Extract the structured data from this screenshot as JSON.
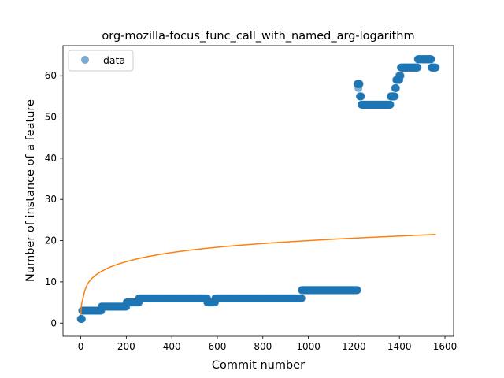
{
  "chart_data": {
    "type": "scatter",
    "title": "org-mozilla-focus_func_call_with_named_arg-logarithm",
    "xlabel": "Commit number",
    "ylabel": "Number of instance of a feature",
    "xlim": [
      -78,
      1638
    ],
    "ylim": [
      -3.2,
      67.3
    ],
    "xticks": [
      0,
      200,
      400,
      600,
      800,
      1000,
      1200,
      1400,
      1600
    ],
    "yticks": [
      0,
      10,
      20,
      30,
      40,
      50,
      60
    ],
    "grid": false,
    "legend": {
      "position": "top-left",
      "entries": [
        "data"
      ]
    },
    "colors": {
      "data": "#1f77b4",
      "fit": "#ff7f0e"
    },
    "series": [
      {
        "name": "data",
        "kind": "scatter",
        "segments": [
          {
            "x": [
              0,
              5
            ],
            "y": 1
          },
          {
            "x": [
              6,
              90
            ],
            "y": 3
          },
          {
            "x": [
              91,
              200
            ],
            "y": 4
          },
          {
            "x": [
              201,
              255
            ],
            "y": 5
          },
          {
            "x": [
              256,
              555
            ],
            "y": 6
          },
          {
            "x": [
              556,
              590
            ],
            "y": 5
          },
          {
            "x": [
              591,
              970
            ],
            "y": 6
          },
          {
            "x": [
              971,
              1215
            ],
            "y": 8
          },
          {
            "x": [
              1216,
              1225
            ],
            "y": 58
          },
          {
            "x": [
              1226,
              1232
            ],
            "y": 55
          },
          {
            "x": [
              1233,
              1360
            ],
            "y": 53
          },
          {
            "x": [
              1361,
              1380
            ],
            "y": 55
          },
          {
            "x": [
              1381,
              1385
            ],
            "y": 57
          },
          {
            "x": [
              1386,
              1400
            ],
            "y": 59
          },
          {
            "x": [
              1401,
              1405
            ],
            "y": 60
          },
          {
            "x": [
              1406,
              1480
            ],
            "y": 62
          },
          {
            "x": [
              1481,
              1540
            ],
            "y": 64
          },
          {
            "x": [
              1541,
              1560
            ],
            "y": 62
          }
        ],
        "extra_points": [
          [
            1220,
            57
          ],
          [
            1215,
            58
          ],
          [
            1398,
            60
          ]
        ]
      },
      {
        "kind": "line",
        "x_range": [
          0,
          1560
        ],
        "y_at": [
          [
            0,
            2.0
          ],
          [
            10,
            6.0
          ],
          [
            30,
            9.5
          ],
          [
            100,
            12.8
          ],
          [
            200,
            14.9
          ],
          [
            400,
            17.1
          ],
          [
            600,
            18.4
          ],
          [
            800,
            19.3
          ],
          [
            1000,
            20.0
          ],
          [
            1200,
            20.6
          ],
          [
            1400,
            21.1
          ],
          [
            1560,
            21.5
          ]
        ]
      }
    ]
  }
}
